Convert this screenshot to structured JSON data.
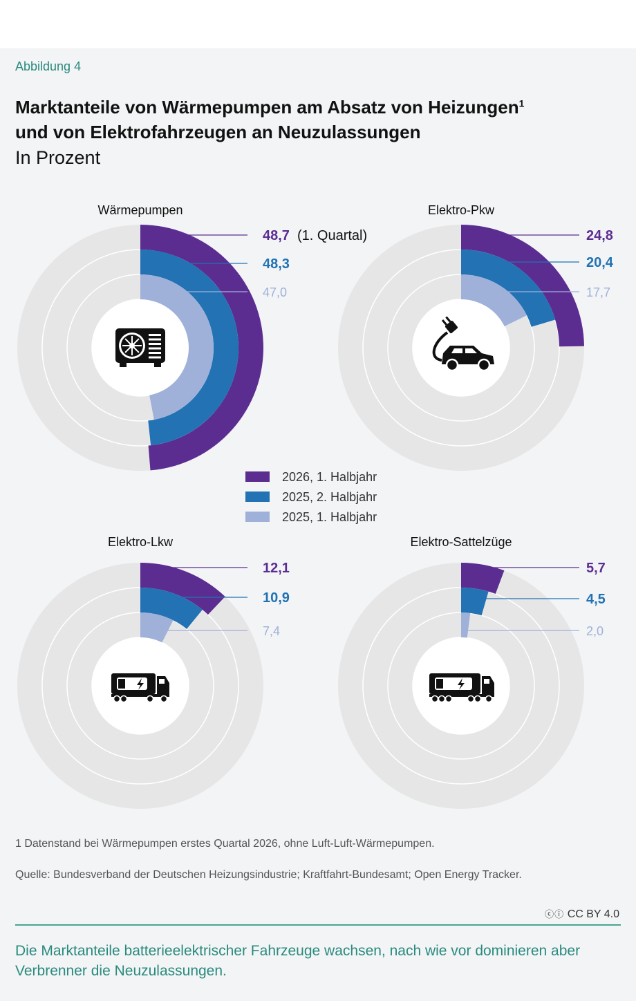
{
  "figure_label": "Abbildung 4",
  "title_line1": "Marktanteile von Wärmepumpen am Absatz von Heizungen",
  "title_footnote_mark": "1",
  "title_line2": "und von Elektrofahrzeugen an Neuzulassungen",
  "subtitle": "In Prozent",
  "colors": {
    "s1": "#5c2d91",
    "s2": "#2272b4",
    "s3": "#9fb1d9",
    "track": "#e6e6e6"
  },
  "chart_data": [
    {
      "type": "radial-bar",
      "title": "Wärmepumpen",
      "icon": "heat-pump-icon",
      "series": [
        {
          "name": "2026, 1. Halbjahr",
          "value": 48.7,
          "label": "48,7",
          "note": "(1. Quartal)"
        },
        {
          "name": "2025, 2. Halbjahr",
          "value": 48.3,
          "label": "48,3"
        },
        {
          "name": "2025, 1. Halbjahr",
          "value": 47.0,
          "label": "47,0"
        }
      ],
      "ylim": [
        0,
        100
      ]
    },
    {
      "type": "radial-bar",
      "title": "Elektro-Pkw",
      "icon": "electric-car-icon",
      "series": [
        {
          "name": "2026, 1. Halbjahr",
          "value": 24.8,
          "label": "24,8"
        },
        {
          "name": "2025, 2. Halbjahr",
          "value": 20.4,
          "label": "20,4"
        },
        {
          "name": "2025, 1. Halbjahr",
          "value": 17.7,
          "label": "17,7"
        }
      ],
      "ylim": [
        0,
        100
      ]
    },
    {
      "type": "radial-bar",
      "title": "Elektro-Lkw",
      "icon": "electric-truck-icon",
      "series": [
        {
          "name": "2026, 1. Halbjahr",
          "value": 12.1,
          "label": "12,1"
        },
        {
          "name": "2025, 2. Halbjahr",
          "value": 10.9,
          "label": "10,9"
        },
        {
          "name": "2025, 1. Halbjahr",
          "value": 7.4,
          "label": "7,4"
        }
      ],
      "ylim": [
        0,
        100
      ]
    },
    {
      "type": "radial-bar",
      "title": "Elektro-Sattelzüge",
      "icon": "electric-semi-truck-icon",
      "series": [
        {
          "name": "2026, 1. Halbjahr",
          "value": 5.7,
          "label": "5,7"
        },
        {
          "name": "2025, 2. Halbjahr",
          "value": 4.5,
          "label": "4,5"
        },
        {
          "name": "2025, 1. Halbjahr",
          "value": 2.0,
          "label": "2,0"
        }
      ],
      "ylim": [
        0,
        100
      ]
    }
  ],
  "legend": [
    "2026, 1. Halbjahr",
    "2025, 2. Halbjahr",
    "2025, 1. Halbjahr"
  ],
  "footnote": "1  Datenstand bei Wärmepumpen erstes Quartal 2026, ohne Luft-Luft-Wärmepumpen.",
  "source": "Quelle: Bundesverband der Deutschen Heizungsindustrie; Kraftfahrt-Bundesamt; Open Energy Tracker.",
  "license": "CC BY 4.0",
  "caption": "Die Marktanteile batterieelektrischer Fahrzeuge wachsen, nach wie vor dominieren aber Verbrenner die Neuzulassungen."
}
